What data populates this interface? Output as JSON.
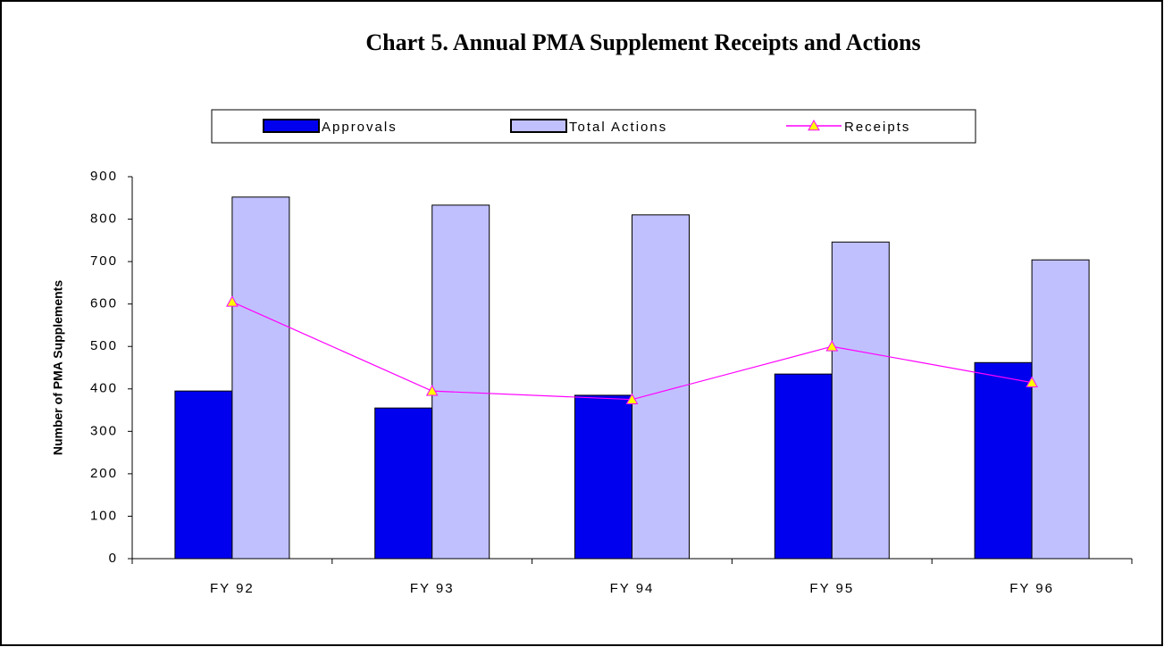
{
  "chart_data": {
    "type": "bar",
    "title": "Chart 5.  Annual PMA Supplement Receipts and Actions",
    "y_label": "Number of PMA Supplements",
    "categories": [
      "FY 92",
      "FY 93",
      "FY 94",
      "FY 95",
      "FY 96"
    ],
    "series": [
      {
        "name": "Approvals",
        "color": "#0000ee",
        "type": "bar",
        "values": [
          395,
          355,
          385,
          435,
          462
        ]
      },
      {
        "name": "Total Actions",
        "color": "#c0c0ff",
        "type": "bar",
        "values": [
          852,
          833,
          810,
          746,
          704
        ]
      },
      {
        "name": "Receipts",
        "color": "#ff00ff",
        "marker_color": "#ffff00",
        "type": "line",
        "values": [
          605,
          395,
          375,
          500,
          415
        ]
      }
    ],
    "ylim": [
      0,
      900
    ],
    "yticks": [
      0,
      100,
      200,
      300,
      400,
      500,
      600,
      700,
      800,
      900
    ],
    "grid": false,
    "legend": "top"
  }
}
